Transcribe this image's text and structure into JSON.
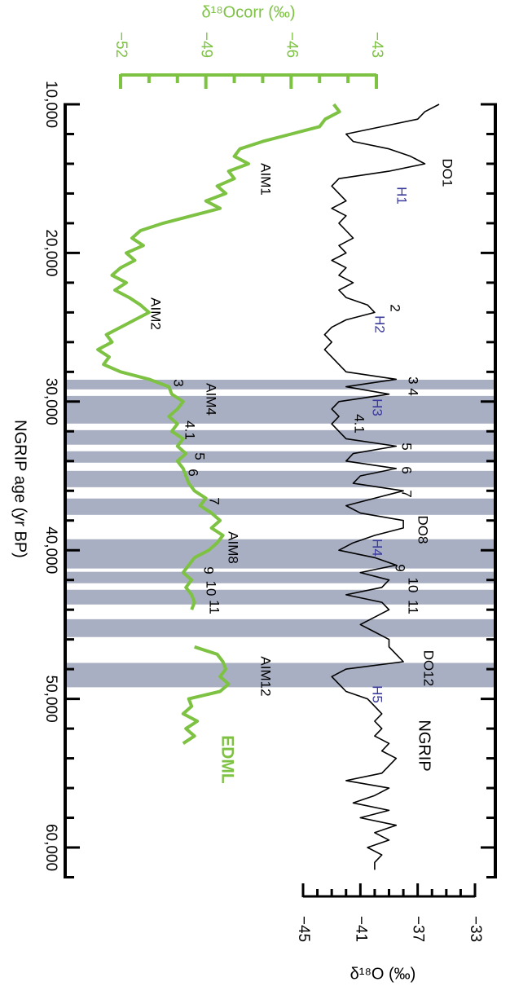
{
  "chart_data": {
    "type": "line",
    "x": [
      10000,
      10500,
      11000,
      11500,
      12000,
      12500,
      13000,
      13500,
      14000,
      14500,
      15000,
      15500,
      16000,
      16500,
      17000,
      17500,
      18000,
      18500,
      19000,
      19500,
      20000,
      20500,
      21000,
      21500,
      22000,
      22500,
      23000,
      23500,
      24000,
      24500,
      25000,
      25500,
      26000,
      26500,
      27000,
      27500,
      28000,
      28500,
      29000,
      29500,
      30000,
      30500,
      31000,
      31500,
      32000,
      32500,
      33000,
      33500,
      34000,
      34500,
      35000,
      35500,
      36000,
      36500,
      37000,
      37500,
      38000,
      38500,
      39000,
      39500,
      40000,
      40500,
      41000,
      41500,
      42000,
      42500,
      43000,
      43500,
      44000,
      44500,
      45000,
      45500,
      46000,
      46500,
      47000,
      47500,
      48000,
      48500,
      49000,
      49500,
      50000,
      50500,
      51000,
      51500,
      52000,
      52500,
      53000,
      53500,
      54000,
      54500,
      55000,
      55500,
      56000,
      56500,
      57000,
      57500,
      58000,
      58500,
      59000,
      59500,
      60000,
      60500,
      61000,
      61500
    ],
    "xlim": [
      10000,
      62000
    ],
    "xticks": [
      {
        "value": 10000,
        "label": "10,000"
      },
      {
        "value": 20000,
        "label": "20,000"
      },
      {
        "value": 30000,
        "label": "30,000"
      },
      {
        "value": 40000,
        "label": "40,000"
      },
      {
        "value": 50000,
        "label": "50,000"
      },
      {
        "value": 60000,
        "label": "60,000"
      }
    ],
    "xminorticks": [
      12000,
      14000,
      16000,
      18000,
      22000,
      24000,
      26000,
      28000,
      32000,
      34000,
      36000,
      38000,
      42000,
      44000,
      46000,
      48000,
      52000,
      54000,
      56000,
      58000,
      62000
    ],
    "xlabel": "NGRIP age (yr BP)",
    "ylim": [
      -45,
      -33
    ],
    "yticks": [
      {
        "value": -45,
        "label": "−45"
      },
      {
        "value": -41,
        "label": "−41"
      },
      {
        "value": -37,
        "label": "−37"
      },
      {
        "value": -33,
        "label": "−33"
      }
    ],
    "yminorticks": [
      -44,
      -43,
      -42,
      -40,
      -39,
      -38,
      -36,
      -35,
      -34
    ],
    "ylabel": "δ¹⁸O (‰)",
    "y2lim": [
      -52,
      -43
    ],
    "y2ticks": [
      {
        "value": -52,
        "label": "−52"
      },
      {
        "value": -49,
        "label": "−49"
      },
      {
        "value": -46,
        "label": "−46"
      },
      {
        "value": -43,
        "label": "−43"
      }
    ],
    "y2minorticks": [
      -51,
      -50,
      -48,
      -47,
      -45,
      -44
    ],
    "y2label": "δ¹⁸Ocorr (‰)",
    "series": [
      {
        "name": "NGRIP",
        "color": "#000000",
        "values": [
          -35.5,
          -36.5,
          -37,
          -39.5,
          -42,
          -41.5,
          -39,
          -37.5,
          -36.5,
          -39,
          -42.5,
          -43,
          -42.5,
          -42,
          -43,
          -42,
          -42.5,
          -42,
          -41.5,
          -42.5,
          -42,
          -43,
          -42,
          -42.5,
          -41.5,
          -42.5,
          -42,
          -40.5,
          -40,
          -42,
          -43,
          -43.5,
          -43,
          -43.5,
          -43,
          -42.5,
          -42,
          -38.5,
          -42,
          -39,
          -42.5,
          -43,
          -42.5,
          -43,
          -42.5,
          -42,
          -38.5,
          -41.5,
          -42,
          -38.5,
          -41,
          -41.5,
          -38,
          -40,
          -42,
          -41,
          -38,
          -38,
          -40,
          -41.5,
          -42.5,
          -40,
          -38.5,
          -41,
          -39,
          -39.5,
          -42,
          -39.5,
          -39,
          -40,
          -41,
          -40,
          -39,
          -39,
          -38.5,
          -38,
          -42,
          -43,
          -42.5,
          -42,
          -40.5,
          -40,
          -39.5,
          -40,
          -39.5,
          -40,
          -39,
          -39.5,
          -38.5,
          -39,
          -39.5,
          -42,
          -39,
          -40,
          -41.5,
          -39,
          -41,
          -38.5,
          -40,
          -39,
          -40.5,
          -39.5,
          -40,
          -40
        ]
      },
      {
        "name": "EDML",
        "color": "#7dc242",
        "axis": "y2",
        "values": [
          -44.5,
          -44.3,
          -44.8,
          -45,
          -46,
          -47,
          -47.8,
          -48,
          -47.5,
          -48.2,
          -48,
          -48.6,
          -48.3,
          -49,
          -48.5,
          -49.5,
          -50.5,
          -51.3,
          -51.6,
          -51.2,
          -51.8,
          -51.5,
          -52,
          -52.3,
          -51.8,
          -52.2,
          -51.7,
          -51.3,
          -51,
          -51.5,
          -52,
          -52.5,
          -52.3,
          -52.8,
          -52.4,
          -52.6,
          -52,
          -51,
          -50.3,
          -50.2,
          -49.8,
          -50,
          -50.3,
          -50,
          -50.2,
          -49.8,
          -50,
          -49.7,
          -50,
          -49.8,
          -49.7,
          -49.6,
          -49.4,
          -49,
          -49.2,
          -48.8,
          -48.5,
          -48.8,
          -48.4,
          -48.6,
          -48.9,
          -49.4,
          -49.6,
          -49.8,
          -49.5,
          -49.7,
          -49.5,
          -49.4,
          -49.5,
          null,
          null,
          null,
          null,
          -49.4,
          -48.6,
          -48.4,
          -48.3,
          -48.5,
          -48.2,
          -48.5,
          -49.6,
          -49.5,
          -49.8,
          -49.3,
          -49.7,
          -49.4,
          -49.8,
          null,
          null,
          null,
          null,
          null,
          null,
          null,
          null,
          null,
          null,
          null,
          null,
          null,
          null,
          null,
          null,
          null
        ]
      }
    ],
    "shaded_intervals": [
      [
        28530,
        29180
      ],
      [
        29620,
        31480
      ],
      [
        31920,
        32900
      ],
      [
        33340,
        34110
      ],
      [
        34660,
        35760
      ],
      [
        36520,
        37620
      ],
      [
        39260,
        41230
      ],
      [
        41450,
        42220
      ],
      [
        42660,
        43650
      ],
      [
        44640,
        45840
      ],
      [
        47580,
        49220
      ]
    ],
    "shade_color": "#a9afc3",
    "annotations": [
      {
        "text": "DO1",
        "color": "#000000"
      },
      {
        "text": "H1",
        "color": "#3b3b9c"
      },
      {
        "text": "2",
        "color": "#000000"
      },
      {
        "text": "H2",
        "color": "#3b3b9c"
      },
      {
        "text": "3 4",
        "color": "#000000"
      },
      {
        "text": "H3",
        "color": "#3b3b9c"
      },
      {
        "text": "4.1",
        "color": "#000000"
      },
      {
        "text": "5",
        "color": "#000000"
      },
      {
        "text": "6",
        "color": "#000000"
      },
      {
        "text": "7",
        "color": "#000000"
      },
      {
        "text": "DO8",
        "color": "#000000"
      },
      {
        "text": "H4",
        "color": "#3b3b9c"
      },
      {
        "text": "9",
        "color": "#000000"
      },
      {
        "text": "10",
        "color": "#000000"
      },
      {
        "text": "11",
        "color": "#000000"
      },
      {
        "text": "DO12",
        "color": "#000000"
      },
      {
        "text": "H5",
        "color": "#3b3b9c"
      },
      {
        "text": "AIM1",
        "color": "#000000"
      },
      {
        "text": "AIM2",
        "color": "#000000"
      },
      {
        "text": "3",
        "color": "#000000"
      },
      {
        "text": "AIM4",
        "color": "#000000"
      },
      {
        "text": "4.1",
        "color": "#000000"
      },
      {
        "text": "5",
        "color": "#000000"
      },
      {
        "text": "6",
        "color": "#000000"
      },
      {
        "text": "7",
        "color": "#000000"
      },
      {
        "text": "AIM8",
        "color": "#000000"
      },
      {
        "text": "9",
        "color": "#000000"
      },
      {
        "text": "10",
        "color": "#000000"
      },
      {
        "text": "11",
        "color": "#000000"
      },
      {
        "text": "AIM12",
        "color": "#000000"
      }
    ]
  }
}
